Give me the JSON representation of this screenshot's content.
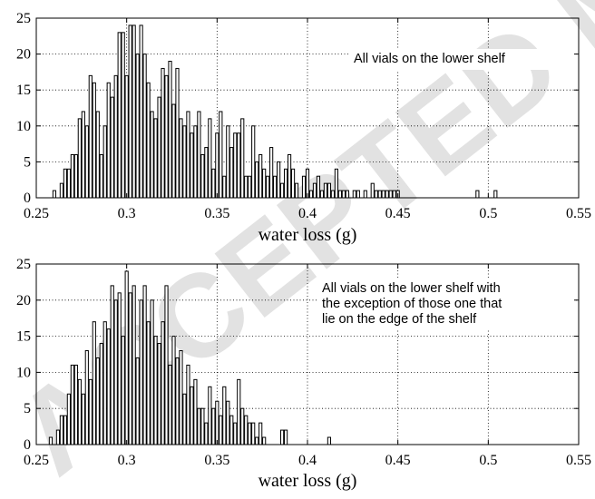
{
  "watermark": "ACCEPTED MANUSCRIPT",
  "chart_data": [
    {
      "type": "bar",
      "title": "",
      "annotation": [
        "All vials on the lower shelf"
      ],
      "xlabel": "water loss (g)",
      "ylabel": "",
      "xlim": [
        0.25,
        0.55
      ],
      "ylim": [
        0,
        25
      ],
      "xticks": [
        "0.25",
        "0.3",
        "0.35",
        "0.4",
        "0.45",
        "0.5",
        "0.55"
      ],
      "yticks": [
        "0",
        "5",
        "10",
        "15",
        "20",
        "25"
      ],
      "grid": true,
      "bin_width": 0.002,
      "x": [
        0.26,
        0.264,
        0.266,
        0.268,
        0.27,
        0.272,
        0.274,
        0.276,
        0.278,
        0.28,
        0.282,
        0.284,
        0.286,
        0.288,
        0.29,
        0.292,
        0.294,
        0.296,
        0.298,
        0.3,
        0.302,
        0.304,
        0.306,
        0.308,
        0.31,
        0.312,
        0.314,
        0.316,
        0.318,
        0.32,
        0.322,
        0.324,
        0.326,
        0.328,
        0.33,
        0.332,
        0.334,
        0.336,
        0.338,
        0.34,
        0.342,
        0.344,
        0.346,
        0.348,
        0.35,
        0.352,
        0.354,
        0.356,
        0.358,
        0.36,
        0.362,
        0.364,
        0.366,
        0.368,
        0.37,
        0.372,
        0.374,
        0.376,
        0.378,
        0.38,
        0.382,
        0.384,
        0.386,
        0.388,
        0.39,
        0.392,
        0.394,
        0.396,
        0.398,
        0.4,
        0.402,
        0.404,
        0.406,
        0.408,
        0.41,
        0.412,
        0.414,
        0.416,
        0.418,
        0.42,
        0.422,
        0.426,
        0.428,
        0.432,
        0.436,
        0.438,
        0.44,
        0.442,
        0.444,
        0.446,
        0.448,
        0.45,
        0.494,
        0.504
      ],
      "values": [
        1,
        2,
        4,
        4,
        6,
        6,
        11,
        12,
        10,
        17,
        16,
        12,
        6,
        10,
        16,
        14,
        17,
        23,
        23,
        17,
        24,
        24,
        20,
        24,
        20,
        16,
        12,
        11,
        14,
        18,
        17,
        19,
        13,
        18,
        11,
        10,
        12,
        9,
        10,
        12,
        6,
        7,
        11,
        4,
        9,
        12,
        3,
        10,
        7,
        9,
        9,
        11,
        3,
        3,
        10,
        5,
        6,
        4,
        3,
        7,
        3,
        5,
        2,
        4,
        6,
        4,
        2,
        0,
        3,
        4,
        1,
        2,
        3,
        1,
        2,
        2,
        1,
        4,
        1,
        1,
        1,
        1,
        1,
        1,
        2,
        1,
        1,
        1,
        1,
        1,
        1,
        1,
        1,
        1
      ]
    },
    {
      "type": "bar",
      "title": "",
      "annotation": [
        "All vials on the lower shelf with",
        "the exception of those one that",
        "lie on the edge of the shelf"
      ],
      "xlabel": "water loss (g)",
      "ylabel": "",
      "xlim": [
        0.25,
        0.55
      ],
      "ylim": [
        0,
        25
      ],
      "xticks": [
        "0.25",
        "0.3",
        "0.35",
        "0.4",
        "0.45",
        "0.5",
        "0.55"
      ],
      "yticks": [
        "0",
        "5",
        "10",
        "15",
        "20",
        "25"
      ],
      "grid": true,
      "bin_width": 0.002,
      "x": [
        0.258,
        0.262,
        0.264,
        0.266,
        0.268,
        0.27,
        0.272,
        0.274,
        0.276,
        0.278,
        0.28,
        0.282,
        0.284,
        0.286,
        0.288,
        0.29,
        0.292,
        0.294,
        0.296,
        0.298,
        0.3,
        0.302,
        0.304,
        0.306,
        0.308,
        0.31,
        0.312,
        0.314,
        0.316,
        0.318,
        0.32,
        0.322,
        0.324,
        0.326,
        0.328,
        0.33,
        0.332,
        0.334,
        0.336,
        0.338,
        0.34,
        0.342,
        0.344,
        0.346,
        0.348,
        0.35,
        0.352,
        0.354,
        0.356,
        0.358,
        0.36,
        0.362,
        0.364,
        0.366,
        0.368,
        0.37,
        0.372,
        0.374,
        0.376,
        0.386,
        0.388,
        0.412
      ],
      "values": [
        1,
        2,
        4,
        4,
        7,
        11,
        11,
        9,
        7,
        13,
        9,
        17,
        12,
        14,
        17,
        16,
        22,
        20,
        21,
        15,
        24,
        21,
        22,
        12,
        20,
        22,
        17,
        20,
        15,
        14,
        17,
        22,
        11,
        15,
        12,
        13,
        7,
        11,
        8,
        9,
        5,
        5,
        3,
        8,
        5,
        6,
        4,
        8,
        6,
        4,
        3,
        9,
        5,
        4,
        3,
        3,
        1,
        3,
        1,
        2,
        2,
        1
      ]
    }
  ]
}
